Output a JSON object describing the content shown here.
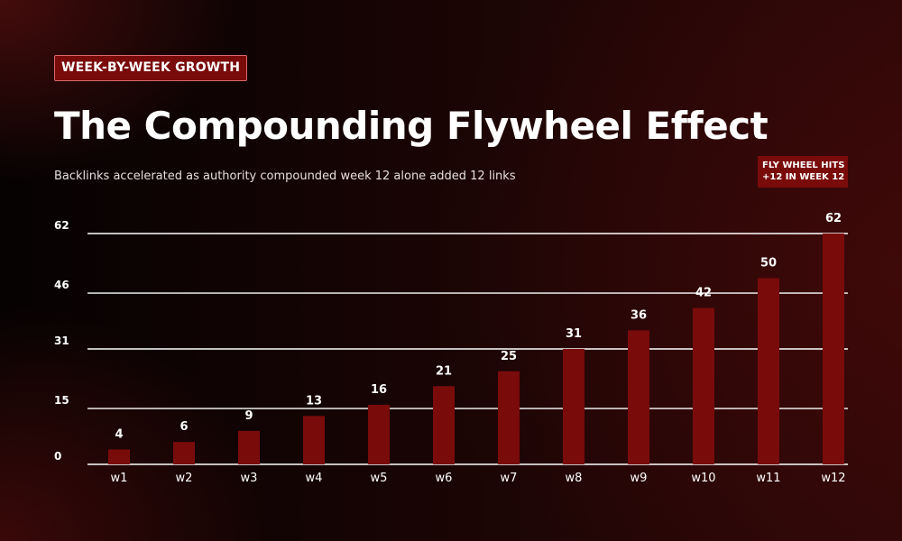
{
  "header": {
    "badge": "WEEK-BY-WEEK GROWTH",
    "title": "The Compounding Flywheel Effect",
    "subtitle": "Backlinks accelerated as authority compounded week 12 alone added 12 links"
  },
  "callout": {
    "line1": "FLY WHEEL HITS",
    "line2": "+12 IN WEEK 12"
  },
  "colors": {
    "bar": "#7a0b0b",
    "gridline": "#ffffff",
    "badge_bg": "#7a0b0b",
    "badge_border": "#d96a6a"
  },
  "chart_data": {
    "type": "bar",
    "title": "",
    "xlabel": "",
    "ylabel": "",
    "categories": [
      "w1",
      "w2",
      "w3",
      "w4",
      "w5",
      "w6",
      "w7",
      "w8",
      "w9",
      "w10",
      "w11",
      "w12"
    ],
    "values": [
      4,
      6,
      9,
      13,
      16,
      21,
      25,
      31,
      36,
      42,
      50,
      62
    ],
    "data_labels": [
      "4",
      "6",
      "9",
      "13",
      "16",
      "21",
      "25",
      "31",
      "36",
      "42",
      "50",
      "62"
    ],
    "ylim": [
      0,
      62
    ],
    "yticks": [
      0,
      15,
      31,
      46,
      62
    ],
    "grid": true,
    "legend": "none"
  }
}
